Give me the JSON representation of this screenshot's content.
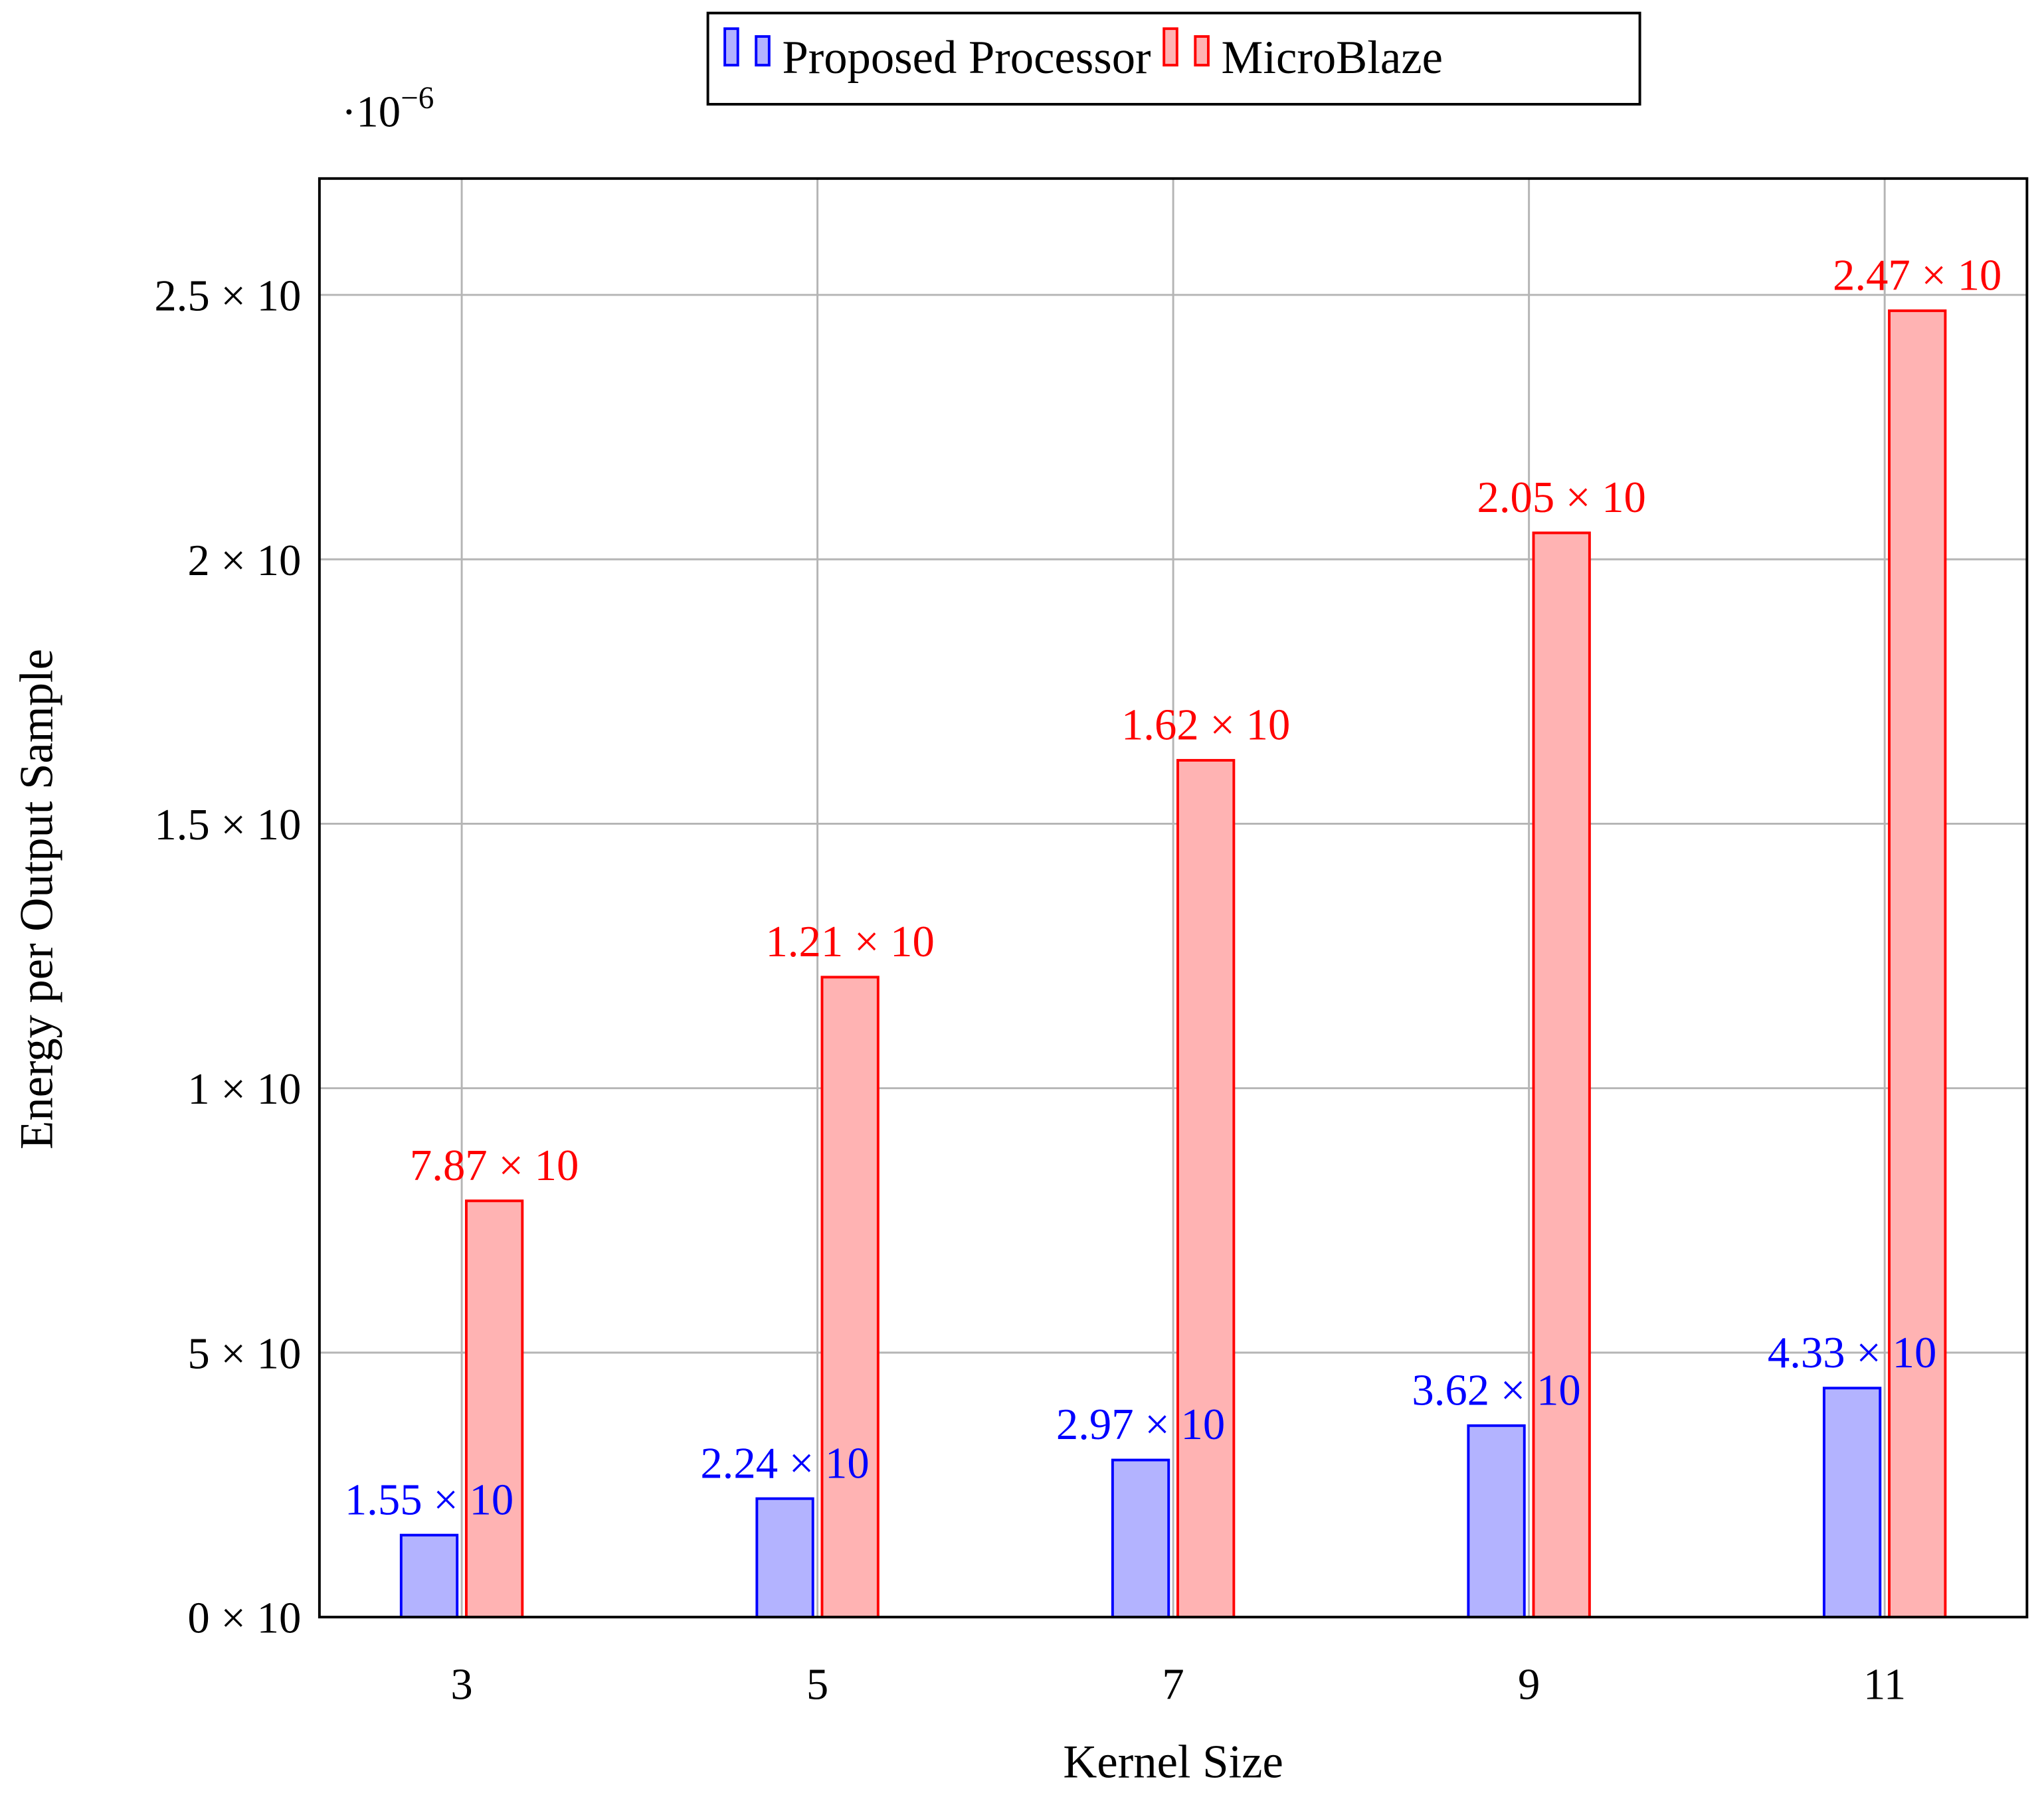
{
  "chart_data": {
    "type": "bar",
    "x_label": "Kernel Size",
    "y_label": "Energy per Output Sample",
    "y_scale_base": "·10",
    "y_scale_exponent": "−6",
    "x": [
      3,
      5,
      7,
      9,
      11
    ],
    "xlim": [
      2.2,
      11.8
    ],
    "xticks": [
      3,
      5,
      7,
      9,
      11
    ],
    "ylim": [
      0,
      2.72
    ],
    "yticks": [
      {
        "value": 0,
        "label": "0 × 10"
      },
      {
        "value": 0.5,
        "label": "5 × 10"
      },
      {
        "value": 1,
        "label": "1 × 10"
      },
      {
        "value": 1.5,
        "label": "1.5 × 10"
      },
      {
        "value": 2,
        "label": "2 × 10"
      },
      {
        "value": 2.5,
        "label": "2.5 × 10"
      }
    ],
    "grid": true,
    "legend": "top",
    "series": [
      {
        "name": "Proposed Processor",
        "color": "#0000ff",
        "fill": "#b3b3ff",
        "values": [
          0.155,
          0.224,
          0.297,
          0.362,
          0.433
        ],
        "value_labels": [
          "1.55 × 10",
          "2.24 × 10",
          "2.97 × 10",
          "3.62 × 10",
          "4.33 × 10"
        ]
      },
      {
        "name": "MicroBlaze",
        "color": "#ff0000",
        "fill": "#ffb3b3",
        "values": [
          0.787,
          1.21,
          1.62,
          2.05,
          2.47
        ],
        "value_labels": [
          "7.87 × 10",
          "1.21 × 10",
          "1.62 × 10",
          "2.05 × 10",
          "2.47 × 10"
        ]
      }
    ]
  }
}
